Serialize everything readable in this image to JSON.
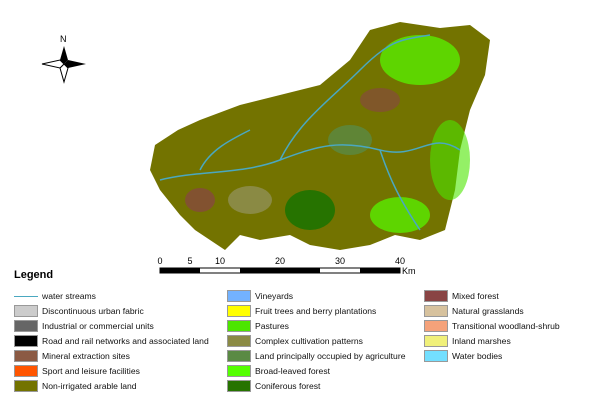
{
  "compass": {
    "north_label": "N"
  },
  "scale": {
    "ticks": [
      "0",
      "5",
      "10",
      "20",
      "30",
      "40"
    ],
    "unit": "Km"
  },
  "legend": {
    "title": "Legend",
    "items": [
      {
        "label": "water streams",
        "color": "#4aa8c0",
        "type": "line"
      },
      {
        "label": "Discontinuous urban fabric",
        "color": "#cccccc"
      },
      {
        "label": "Industrial or commercial units",
        "color": "#666666"
      },
      {
        "label": "Road and rail networks and associated land",
        "color": "#000000"
      },
      {
        "label": "Mineral extraction sites",
        "color": "#8b5a44"
      },
      {
        "label": "Sport and leisure facilities",
        "color": "#ff5500"
      },
      {
        "label": "Non-irrigated arable land",
        "color": "#737300"
      },
      {
        "label": "Vineyards",
        "color": "#73b2ff"
      },
      {
        "label": "Fruit trees and berry plantations",
        "color": "#ffff00"
      },
      {
        "label": "Pastures",
        "color": "#4ce600"
      },
      {
        "label": "Complex cultivation patterns",
        "color": "#8a8a44"
      },
      {
        "label": "Land principally occupied by agriculture",
        "color": "#5a8a44"
      },
      {
        "label": "Broad-leaved forest",
        "color": "#55ff00"
      },
      {
        "label": "Coniferous forest",
        "color": "#267300"
      },
      {
        "label": "Mixed forest",
        "color": "#894444"
      },
      {
        "label": "Natural grasslands",
        "color": "#d7c29e"
      },
      {
        "label": "Transitional woodland-shrub",
        "color": "#f5a27a"
      },
      {
        "label": "Inland marshes",
        "color": "#f0f07a"
      },
      {
        "label": "Water bodies",
        "color": "#73dfff"
      }
    ]
  }
}
